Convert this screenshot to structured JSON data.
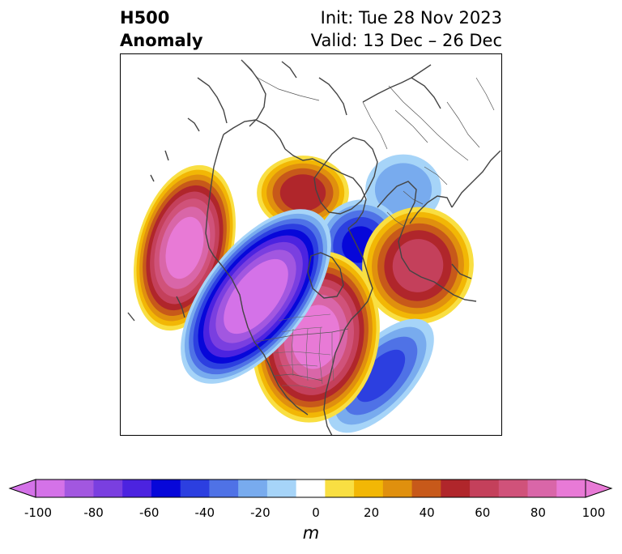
{
  "title": {
    "left_line1": "H500",
    "left_line2": "Anomaly",
    "right_line1": "Init: Tue 28 Nov 2023",
    "right_line2": "Valid: 13 Dec – 26 Dec"
  },
  "colorbar": {
    "unit": "m",
    "tick_labels": [
      "-100",
      "-80",
      "-60",
      "-40",
      "-20",
      "0",
      "20",
      "40",
      "60",
      "80",
      "100"
    ],
    "levels": [
      -100,
      -90,
      -80,
      -70,
      -60,
      -50,
      -40,
      -30,
      -20,
      -10,
      10,
      20,
      30,
      40,
      50,
      60,
      70,
      80,
      90,
      100
    ],
    "colors": [
      "#d472e8",
      "#a257e0",
      "#7a3fe0",
      "#4c23e0",
      "#0707d9",
      "#2c3fe0",
      "#4f72e6",
      "#78abee",
      "#a6d4f8",
      "#ffffff",
      "#f9df42",
      "#f2b705",
      "#e0900e",
      "#c7591a",
      "#b0262b",
      "#c4405b",
      "#d0527a",
      "#d966a8",
      "#e87ad6"
    ],
    "under_color": "#d472e8",
    "over_color": "#e87ad6"
  },
  "map": {
    "features": [
      "anomaly-field",
      "coastlines",
      "country-borders",
      "state-borders"
    ],
    "anomalies": [
      {
        "name": "west-pacific-ridge",
        "sign": "positive",
        "peak_m": 95
      },
      {
        "name": "western-north-america-trough",
        "sign": "negative",
        "peak_m": -100
      },
      {
        "name": "eastern-canada-ridge",
        "sign": "positive",
        "peak_m": 95
      },
      {
        "name": "western-atlantic-trough",
        "sign": "negative",
        "peak_m": -40
      },
      {
        "name": "siberia-ridge",
        "sign": "positive",
        "peak_m": 55
      },
      {
        "name": "arctic-trough",
        "sign": "negative",
        "peak_m": -50
      },
      {
        "name": "europe-ridge",
        "sign": "positive",
        "peak_m": 65
      },
      {
        "name": "asia-trough",
        "sign": "negative",
        "peak_m": -25
      }
    ]
  }
}
